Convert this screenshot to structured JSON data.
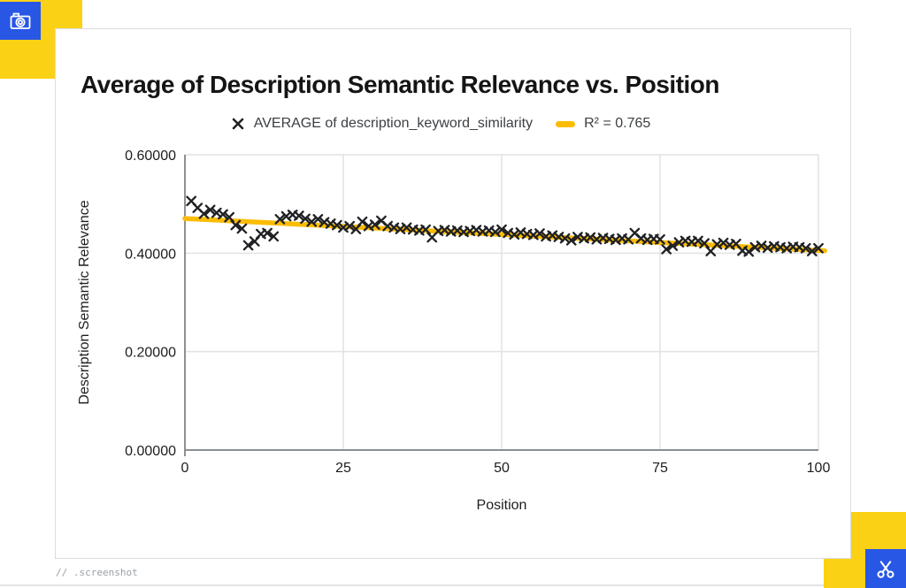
{
  "colors": {
    "accent_yellow": "#FBD116",
    "accent_blue": "#2857E6",
    "trend_yellow": "#FBBC04",
    "marker_black": "#202124",
    "gridline_gray": "#e2e2e2",
    "axis_gray": "#616161"
  },
  "icons": {
    "top_left_button": "camera-icon",
    "bottom_right_button": "scissors-icon"
  },
  "footer": {
    "note": "// .screenshot"
  },
  "chart": {
    "title": "Average of Description Semantic Relevance vs. Position",
    "legend": {
      "series_label": "AVERAGE of description_keyword_similarity",
      "trend_label": "R² = 0.765"
    }
  },
  "chart_data": {
    "type": "scatter",
    "title": "Average of Description Semantic Relevance vs. Position",
    "xlabel": "Position",
    "ylabel": "Description Semantic Relevance",
    "xlim": [
      0,
      100
    ],
    "ylim": [
      0,
      0.6
    ],
    "x_ticks": [
      0,
      25,
      50,
      75,
      100
    ],
    "y_ticks": [
      0,
      0.2,
      0.4,
      0.6
    ],
    "y_tick_labels": [
      "0.00000",
      "0.20000",
      "0.40000",
      "0.60000"
    ],
    "grid": true,
    "legend_position": "top",
    "series": [
      {
        "name": "AVERAGE of description_keyword_similarity",
        "marker": "x",
        "color": "#202124",
        "x": [
          1,
          2,
          3,
          4,
          5,
          6,
          7,
          8,
          9,
          10,
          11,
          12,
          13,
          14,
          15,
          16,
          17,
          18,
          19,
          20,
          21,
          22,
          23,
          24,
          25,
          26,
          27,
          28,
          29,
          30,
          31,
          32,
          33,
          34,
          35,
          36,
          37,
          38,
          39,
          40,
          41,
          42,
          43,
          44,
          45,
          46,
          47,
          48,
          49,
          50,
          51,
          52,
          53,
          54,
          55,
          56,
          57,
          58,
          59,
          60,
          61,
          62,
          63,
          64,
          65,
          66,
          67,
          68,
          69,
          70,
          71,
          72,
          73,
          74,
          75,
          76,
          77,
          78,
          79,
          80,
          81,
          82,
          83,
          84,
          85,
          86,
          87,
          88,
          89,
          90,
          91,
          92,
          93,
          94,
          95,
          96,
          97,
          98,
          99,
          100
        ],
        "y": [
          0.506,
          0.492,
          0.48,
          0.488,
          0.482,
          0.479,
          0.473,
          0.457,
          0.45,
          0.416,
          0.424,
          0.439,
          0.441,
          0.434,
          0.469,
          0.475,
          0.478,
          0.476,
          0.47,
          0.464,
          0.469,
          0.463,
          0.46,
          0.457,
          0.452,
          0.455,
          0.449,
          0.464,
          0.455,
          0.458,
          0.466,
          0.455,
          0.452,
          0.449,
          0.452,
          0.448,
          0.446,
          0.448,
          0.432,
          0.445,
          0.447,
          0.444,
          0.446,
          0.443,
          0.445,
          0.447,
          0.444,
          0.446,
          0.443,
          0.448,
          0.441,
          0.438,
          0.442,
          0.439,
          0.437,
          0.44,
          0.434,
          0.436,
          0.433,
          0.43,
          0.426,
          0.433,
          0.43,
          0.432,
          0.428,
          0.431,
          0.429,
          0.427,
          0.43,
          0.428,
          0.441,
          0.43,
          0.427,
          0.429,
          0.428,
          0.408,
          0.415,
          0.422,
          0.425,
          0.423,
          0.425,
          0.42,
          0.404,
          0.418,
          0.421,
          0.417,
          0.419,
          0.405,
          0.403,
          0.412,
          0.415,
          0.411,
          0.414,
          0.412,
          0.41,
          0.413,
          0.412,
          0.41,
          0.404,
          0.41
        ]
      }
    ],
    "trendline": {
      "name": "R² = 0.765",
      "r_squared": 0.765,
      "color": "#FBBC04",
      "x": [
        0,
        101
      ],
      "y": [
        0.4705,
        0.4049
      ]
    }
  }
}
